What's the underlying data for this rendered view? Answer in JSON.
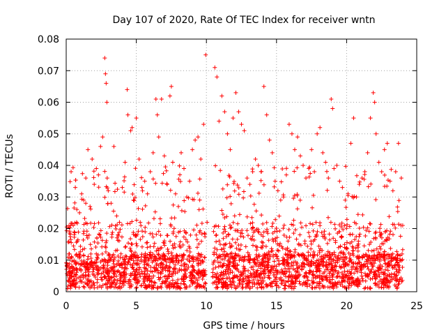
{
  "chart_data": {
    "type": "scatter",
    "title": "Day 107 of 2020, Rate Of TEC Index for receiver wntn",
    "xlabel": "GPS time / hours",
    "ylabel": "ROTI / TECUs",
    "xlim": [
      0,
      25
    ],
    "ylim": [
      0,
      0.08
    ],
    "x_ticks": [
      0,
      5,
      10,
      15,
      20,
      25
    ],
    "x_tick_labels": [
      "0",
      "5",
      "10",
      "15",
      "20",
      "25"
    ],
    "y_ticks": [
      0,
      0.01,
      0.02,
      0.03,
      0.04,
      0.05,
      0.06,
      0.07,
      0.08
    ],
    "y_tick_labels": [
      "0",
      "0.01",
      "0.02",
      "0.03",
      "0.04",
      "0.05",
      "0.06",
      "0.07",
      "0.08"
    ],
    "grid": true,
    "marker": "+",
    "series": [
      {
        "color": "#ff0000",
        "x": [
          0.05,
          0.2,
          0.35,
          0.5,
          0.65,
          0.8,
          0.95,
          1.1,
          1.25,
          1.4,
          1.55,
          1.7,
          1.85,
          2.0,
          2.15,
          2.3,
          2.45,
          2.6,
          2.75,
          2.8,
          2.85,
          2.9,
          3.0,
          3.2,
          3.4,
          3.6,
          3.8,
          4.0,
          4.2,
          4.35,
          4.4,
          4.6,
          4.7,
          4.8,
          5.0,
          5.2,
          5.4,
          5.6,
          5.8,
          6.0,
          6.2,
          6.4,
          6.5,
          6.6,
          6.8,
          7.0,
          7.2,
          7.4,
          7.5,
          7.6,
          7.8,
          8.0,
          8.2,
          8.4,
          8.6,
          8.8,
          9.0,
          9.2,
          9.4,
          9.6,
          9.8,
          9.95,
          10.05,
          10.6,
          10.75,
          10.9,
          11.1,
          11.3,
          11.5,
          11.7,
          11.9,
          12.1,
          12.3,
          12.5,
          12.7,
          12.9,
          13.1,
          13.3,
          13.5,
          13.7,
          13.9,
          14.1,
          14.3,
          14.5,
          14.7,
          14.9,
          15.1,
          15.3,
          15.5,
          15.7,
          15.9,
          16.1,
          16.3,
          16.5,
          16.7,
          16.9,
          17.1,
          17.3,
          17.5,
          17.7,
          17.9,
          18.1,
          18.3,
          18.5,
          18.7,
          18.9,
          19.0,
          19.1,
          19.3,
          19.5,
          19.7,
          19.9,
          20.1,
          20.3,
          20.5,
          20.7,
          20.9,
          21.1,
          21.3,
          21.5,
          21.7,
          21.9,
          22.0,
          22.1,
          22.3,
          22.5,
          22.7,
          22.9,
          23.1,
          23.3,
          23.5,
          23.7,
          23.9,
          24.0
        ],
        "y": [
          0.008,
          0.012,
          0.038,
          0.021,
          0.033,
          0.016,
          0.025,
          0.031,
          0.029,
          0.036,
          0.045,
          0.027,
          0.042,
          0.034,
          0.039,
          0.037,
          0.046,
          0.049,
          0.074,
          0.069,
          0.066,
          0.06,
          0.032,
          0.028,
          0.046,
          0.024,
          0.022,
          0.033,
          0.041,
          0.064,
          0.056,
          0.051,
          0.052,
          0.029,
          0.055,
          0.042,
          0.033,
          0.035,
          0.031,
          0.038,
          0.044,
          0.061,
          0.056,
          0.049,
          0.061,
          0.043,
          0.034,
          0.062,
          0.065,
          0.041,
          0.031,
          0.027,
          0.044,
          0.039,
          0.03,
          0.035,
          0.045,
          0.048,
          0.049,
          0.042,
          0.053,
          0.075,
          0.022,
          0.071,
          0.068,
          0.054,
          0.062,
          0.057,
          0.05,
          0.045,
          0.055,
          0.063,
          0.057,
          0.053,
          0.051,
          0.036,
          0.034,
          0.038,
          0.042,
          0.04,
          0.038,
          0.065,
          0.056,
          0.048,
          0.044,
          0.035,
          0.032,
          0.029,
          0.03,
          0.037,
          0.053,
          0.05,
          0.045,
          0.049,
          0.043,
          0.04,
          0.036,
          0.039,
          0.045,
          0.038,
          0.05,
          0.052,
          0.044,
          0.041,
          0.036,
          0.061,
          0.058,
          0.039,
          0.04,
          0.035,
          0.033,
          0.029,
          0.031,
          0.047,
          0.055,
          0.03,
          0.034,
          0.036,
          0.038,
          0.044,
          0.055,
          0.063,
          0.06,
          0.05,
          0.041,
          0.038,
          0.045,
          0.047,
          0.035,
          0.032,
          0.038,
          0.047,
          0.036,
          0.021
        ]
      }
    ],
    "data_gap_hours": [
      9.95,
      10.45
    ],
    "point_cloud": {
      "baseline_low": 0.001,
      "baseline_high": 0.012,
      "typical_peak": 0.03
    }
  }
}
